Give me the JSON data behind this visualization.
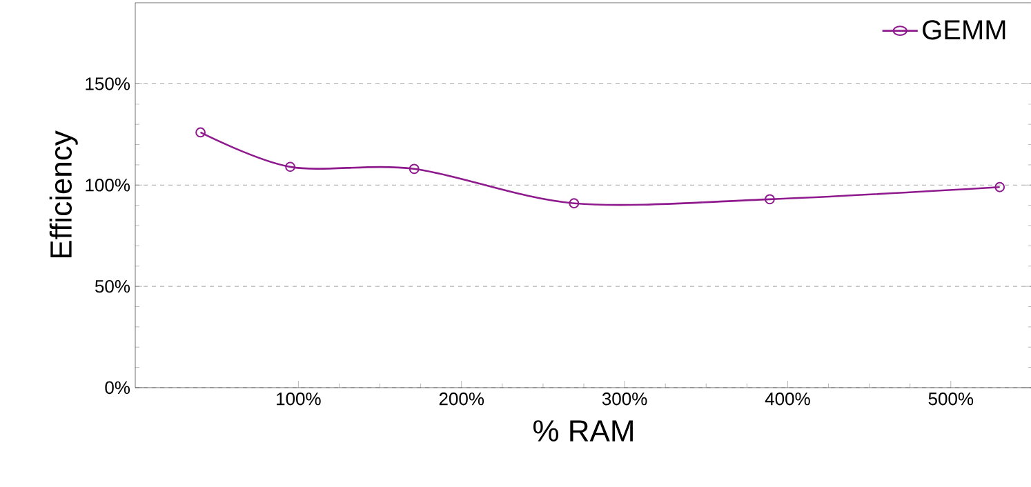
{
  "chart_data": {
    "type": "line",
    "xlabel": "% RAM",
    "ylabel": "Efficiency",
    "x": [
      40,
      95,
      171,
      269,
      389,
      530
    ],
    "series": [
      {
        "name": "GEMM",
        "color": "#8e1a8e",
        "values": [
          126,
          109,
          108,
          91,
          93,
          99
        ]
      }
    ],
    "xlim": [
      0,
      550
    ],
    "ylim": [
      0,
      190
    ],
    "xticks": [
      {
        "value": 100,
        "label": "100%"
      },
      {
        "value": 200,
        "label": "200%"
      },
      {
        "value": 300,
        "label": "300%"
      },
      {
        "value": 400,
        "label": "400%"
      },
      {
        "value": 500,
        "label": "500%"
      }
    ],
    "yticks": [
      {
        "value": 0,
        "label": "0%"
      },
      {
        "value": 50,
        "label": "50%"
      },
      {
        "value": 100,
        "label": "100%"
      },
      {
        "value": 150,
        "label": "150%"
      }
    ],
    "grid": "y",
    "legend": "top right",
    "marker": "circle",
    "line_style": "solid"
  }
}
